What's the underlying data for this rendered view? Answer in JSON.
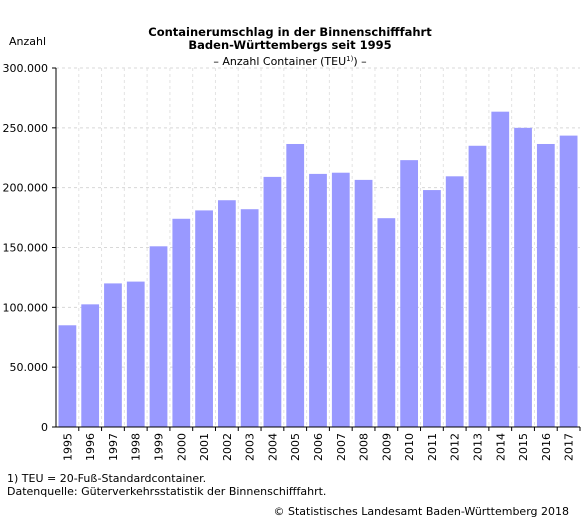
{
  "chart_data": {
    "type": "bar",
    "title_line1": "Containerumschlag in der Binnenschifffahrt",
    "title_line2": "Baden-Württembergs seit 1995",
    "subtitle_pre": "– Anzahl Container (TEU",
    "subtitle_sup": "1)",
    "subtitle_post": ") –",
    "ylabel": "Anzahl",
    "xlabel": "",
    "ylim": [
      0,
      300000
    ],
    "yticks": [
      "0",
      "50.000",
      "100.000",
      "150.000",
      "200.000",
      "250.000",
      "300.000"
    ],
    "categories": [
      "1995",
      "1996",
      "1997",
      "1998",
      "1999",
      "2000",
      "2001",
      "2002",
      "2003",
      "2004",
      "2005",
      "2006",
      "2007",
      "2008",
      "2009",
      "2010",
      "2011",
      "2012",
      "2013",
      "2014",
      "2015",
      "2016",
      "2017"
    ],
    "values": [
      85000,
      102500,
      120000,
      121500,
      151000,
      174000,
      181000,
      189500,
      182000,
      209000,
      236500,
      211500,
      212500,
      206500,
      174500,
      223000,
      198000,
      209500,
      235000,
      263500,
      250000,
      236500,
      243500
    ],
    "bar_color": "#9999ff",
    "grid": true
  },
  "footnote_1": "1) TEU = 20-Fuß-Standardcontainer.",
  "footnote_2": "Datenquelle: Güterverkehrsstatistik der Binnenschifffahrt.",
  "copyright": "© Statistisches Landesamt Baden-Württemberg 2018"
}
